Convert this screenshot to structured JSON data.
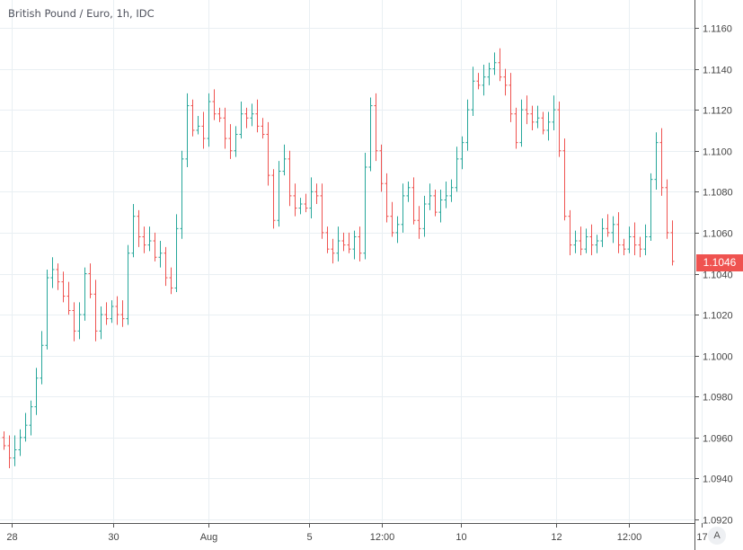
{
  "title": "British Pound / Euro, 1h, IDC",
  "auto_scale_label": "A",
  "colors": {
    "up": "#26a69a",
    "down": "#ef5350",
    "grid": "#e9eff3",
    "axis": "#555555",
    "text": "#444444"
  },
  "chart_data": {
    "type": "ohlc",
    "title": "British Pound / Euro, 1h, IDC",
    "ylim": [
      1.092,
      1.116
    ],
    "y_ticks": [
      "1.1160",
      "1.1140",
      "1.1120",
      "1.1100",
      "1.1080",
      "1.1060",
      "1.1040",
      "1.1020",
      "1.1000",
      "1.0980",
      "1.0960",
      "1.0940",
      "1.0920"
    ],
    "x_ticks": [
      {
        "label": "28",
        "bar": 2
      },
      {
        "label": "30",
        "bar": 20
      },
      {
        "label": "Aug",
        "bar": 37
      },
      {
        "label": "5",
        "bar": 55
      },
      {
        "label": "12:00",
        "bar": 68
      },
      {
        "label": "10",
        "bar": 82
      },
      {
        "label": "12",
        "bar": 99
      },
      {
        "label": "12:00",
        "bar": 112
      },
      {
        "label": "17",
        "bar": 125
      }
    ],
    "last_price": "1.1046",
    "first_open": 1.096,
    "close": [
      1.0956,
      1.095,
      1.0954,
      1.096,
      1.0966,
      1.0975,
      1.0989,
      1.1005,
      1.1038,
      1.1042,
      1.1036,
      1.1029,
      1.1022,
      1.1012,
      1.102,
      1.104,
      1.103,
      1.1012,
      1.102,
      1.1018,
      1.1024,
      1.102,
      1.1018,
      1.105,
      1.1068,
      1.1058,
      1.1054,
      1.1056,
      1.1048,
      1.105,
      1.1038,
      1.1033,
      1.1062,
      1.1096,
      1.1122,
      1.111,
      1.1112,
      1.1106,
      1.1124,
      1.1118,
      1.1116,
      1.1106,
      1.11,
      1.1108,
      1.1118,
      1.1116,
      1.1118,
      1.1112,
      1.1108,
      1.1088,
      1.1066,
      1.109,
      1.1096,
      1.1078,
      1.1072,
      1.1074,
      1.1072,
      1.108,
      1.1078,
      1.106,
      1.1052,
      1.105,
      1.1056,
      1.1054,
      1.1052,
      1.1058,
      1.105,
      1.1092,
      1.1122,
      1.11,
      1.1084,
      1.1068,
      1.106,
      1.1064,
      1.1078,
      1.1082,
      1.1066,
      1.1062,
      1.1074,
      1.1078,
      1.107,
      1.1076,
      1.1078,
      1.1082,
      1.1096,
      1.1104,
      1.112,
      1.1134,
      1.1132,
      1.1136,
      1.114,
      1.1143,
      1.1136,
      1.1132,
      1.1118,
      1.1104,
      1.112,
      1.1118,
      1.1114,
      1.1116,
      1.111,
      1.1114,
      1.112,
      1.11,
      1.1068,
      1.1054,
      1.1056,
      1.1052,
      1.1058,
      1.1054,
      1.1056,
      1.1062,
      1.106,
      1.1064,
      1.1054,
      1.1052,
      1.1058,
      1.1054,
      1.1052,
      1.1058,
      1.1086,
      1.1104,
      1.1082,
      1.106,
      1.1046
    ]
  }
}
